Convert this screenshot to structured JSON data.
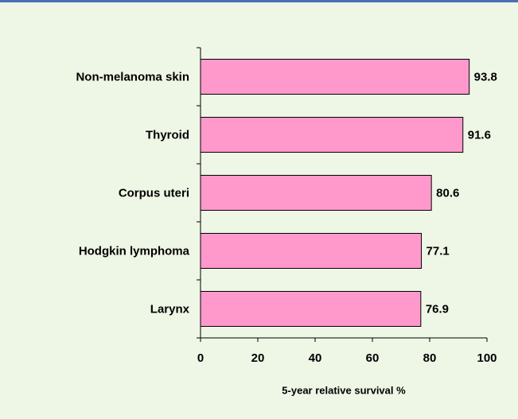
{
  "chart_data": {
    "type": "bar",
    "orientation": "horizontal",
    "categories": [
      "Non-melanoma skin",
      "Thyroid",
      "Corpus uteri",
      "Hodgkin lymphoma",
      "Larynx"
    ],
    "values": [
      93.8,
      91.6,
      80.6,
      77.1,
      76.9
    ],
    "color": "#ff99cc",
    "xlim": [
      0,
      100
    ],
    "xticks": [
      0,
      20,
      40,
      60,
      80,
      100
    ],
    "x_label": "5-year relative survival %"
  }
}
